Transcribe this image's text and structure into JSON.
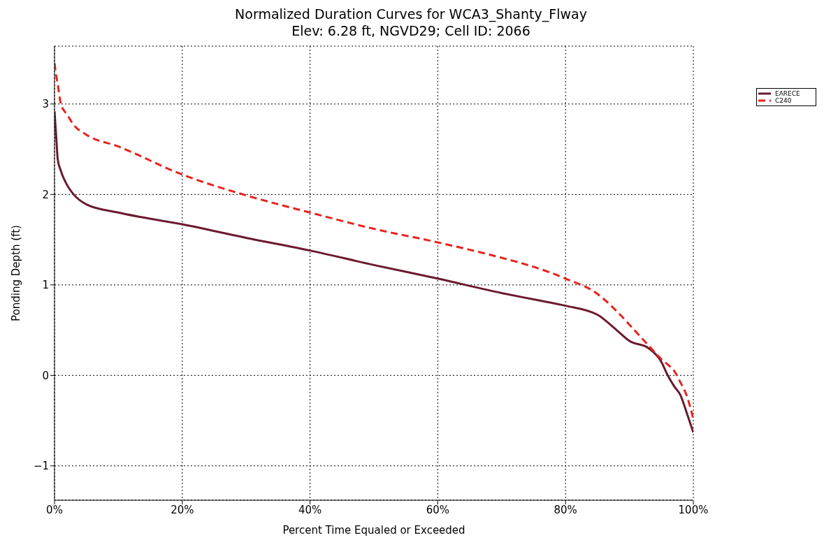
{
  "chart_data": {
    "type": "line",
    "title": "Normalized Duration Curves for WCA3_Shanty_Flway",
    "subtitle": "Elev: 6.28 ft, NGVD29; Cell ID: 2066",
    "xlabel": "Percent Time Equaled or Exceeded",
    "ylabel": "Ponding Depth (ft)",
    "x": [
      0,
      0.3,
      0.5,
      1,
      2,
      3,
      5,
      10,
      20,
      30,
      40,
      50,
      60,
      70,
      75,
      80,
      85,
      88,
      90,
      93,
      95,
      96,
      97,
      98,
      99,
      100
    ],
    "series": [
      {
        "name": "EARECE",
        "color": "#6b1a2e",
        "line_style": "solid",
        "values": [
          2.92,
          2.6,
          2.39,
          2.26,
          2.1,
          2.0,
          1.89,
          1.8,
          1.67,
          1.52,
          1.38,
          1.22,
          1.07,
          0.91,
          0.84,
          0.77,
          0.67,
          0.5,
          0.38,
          0.3,
          0.15,
          0.0,
          -0.12,
          -0.22,
          -0.42,
          -0.63
        ]
      },
      {
        "name": "C240",
        "color": "#e8231e",
        "line_style": "dashed",
        "values": [
          3.45,
          3.3,
          3.22,
          3.0,
          2.88,
          2.77,
          2.66,
          2.53,
          2.22,
          1.99,
          1.8,
          1.62,
          1.47,
          1.3,
          1.2,
          1.07,
          0.9,
          0.71,
          0.56,
          0.33,
          0.18,
          0.12,
          0.05,
          -0.08,
          -0.23,
          -0.48
        ]
      }
    ],
    "xlim": [
      0,
      100
    ],
    "xticks": [
      {
        "value": 0,
        "label": "0%"
      },
      {
        "value": 20,
        "label": "20%"
      },
      {
        "value": 40,
        "label": "40%"
      },
      {
        "value": 60,
        "label": "60%"
      },
      {
        "value": 80,
        "label": "80%"
      },
      {
        "value": 100,
        "label": "100%"
      }
    ],
    "ylim": [
      -1.38,
      3.64
    ],
    "yticks": [
      -1,
      0,
      1,
      2,
      3
    ],
    "grid": true,
    "legend": "top right",
    "marker": "none"
  }
}
